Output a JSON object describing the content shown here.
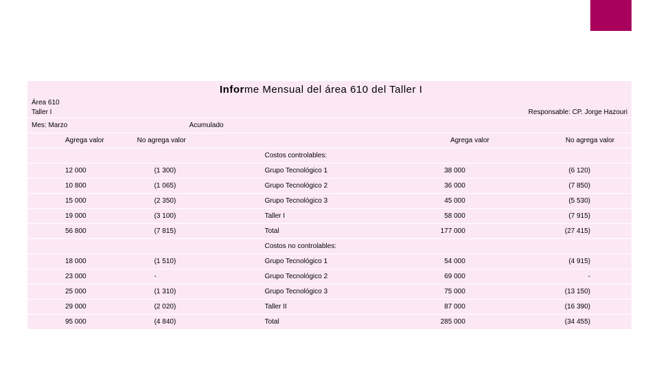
{
  "colors": {
    "accent": "#a8005c",
    "row_bg": "#fce8f5"
  },
  "title": {
    "prefix": "Infor",
    "rest": "me Mensual del área 610 del Taller I"
  },
  "meta": {
    "area": "Área 610",
    "taller": "Taller I",
    "responsable": "Responsable: CP. Jorge Hazouri",
    "mes": "Mes: Marzo",
    "acumulado": "Acumulado",
    "agrega": "Agrega valor",
    "noagrega": "No agrega valor"
  },
  "sections": {
    "s1": "Costos controlables:",
    "s2": "Costos no controlables:"
  },
  "rows_controlables": [
    {
      "av": "12 000",
      "nav": "(1 300)",
      "desc": "Grupo Tecnológico 1",
      "av2": "38 000",
      "nav2": "(6 120)"
    },
    {
      "av": "10 800",
      "nav": "(1 065)",
      "desc": "Grupo Tecnológico 2",
      "av2": "36 000",
      "nav2": "(7 850)"
    },
    {
      "av": "15 000",
      "nav": "(2 350)",
      "desc": "Grupo Tecnológico 3",
      "av2": "45 000",
      "nav2": "(5 530)"
    },
    {
      "av": "19 000",
      "nav": "(3 100)",
      "desc": "Taller I",
      "av2": "58 000",
      "nav2": "(7 915)"
    },
    {
      "av": "56 800",
      "nav": "(7 815)",
      "desc": "Total",
      "av2": "177 000",
      "nav2": "(27 415)"
    }
  ],
  "rows_no_controlables": [
    {
      "av": "18 000",
      "nav": "(1 510)",
      "desc": "Grupo Tecnológico 1",
      "av2": "54 000",
      "nav2": "(4 915)"
    },
    {
      "av": "23 000",
      "nav": "-",
      "desc": "Grupo Tecnológico 2",
      "av2": "69 000",
      "nav2": "-"
    },
    {
      "av": "25 000",
      "nav": "(1 310)",
      "desc": "Grupo Tecnológico 3",
      "av2": "75 000",
      "nav2": "(13 150)"
    },
    {
      "av": "29 000",
      "nav": "(2 020)",
      "desc": "Taller II",
      "av2": "87 000",
      "nav2": "(16 390)"
    },
    {
      "av": "95 000",
      "nav": "(4 840)",
      "desc": "Total",
      "av2": "285 000",
      "nav2": "(34 455)"
    }
  ]
}
